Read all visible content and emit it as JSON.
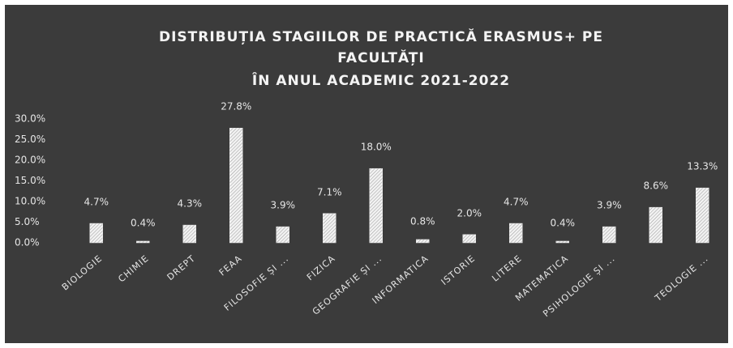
{
  "chart_data": {
    "type": "bar",
    "title": [
      "DISTRIBUȚIA STAGIILOR DE PRACTICĂ ERASMUS+ PE",
      "FACULTĂȚI",
      "ÎN ANUL ACADEMIC 2021-2022"
    ],
    "categories": [
      "BIOLOGIE",
      "CHIMIE",
      "DREPT",
      "FEAA",
      "FILOSOFIE ȘI ...",
      "FIZICA",
      "GEOGRAFIE ȘI ...",
      "INFORMATICA",
      "ISTORIE",
      "LITERE",
      "MATEMATICA",
      "PSIHOLOGIE ȘI ...",
      null,
      "TEOLOGIE ..."
    ],
    "values": [
      4.7,
      0.4,
      4.3,
      27.8,
      3.9,
      7.1,
      18.0,
      0.8,
      2.0,
      4.7,
      0.4,
      3.9,
      8.6,
      13.3
    ],
    "value_labels": [
      "4.7%",
      "0.4%",
      "4.3%",
      "27.8%",
      "3.9%",
      "7.1%",
      "18.0%",
      "0.8%",
      "2.0%",
      "4.7%",
      "0.4%",
      "3.9%",
      "8.6%",
      "13.3%"
    ],
    "color": "#e8e8e8",
    "ylim": [
      0,
      30
    ],
    "yticks": [
      {
        "value": 0,
        "label": "0.0%"
      },
      {
        "value": 5,
        "label": "5.0%"
      },
      {
        "value": 10,
        "label": "10.0%"
      },
      {
        "value": 15,
        "label": "15.0%"
      },
      {
        "value": 20,
        "label": "20.0%"
      },
      {
        "value": 25,
        "label": "25.0%"
      },
      {
        "value": 30,
        "label": "30.0%"
      }
    ],
    "grid": false
  }
}
